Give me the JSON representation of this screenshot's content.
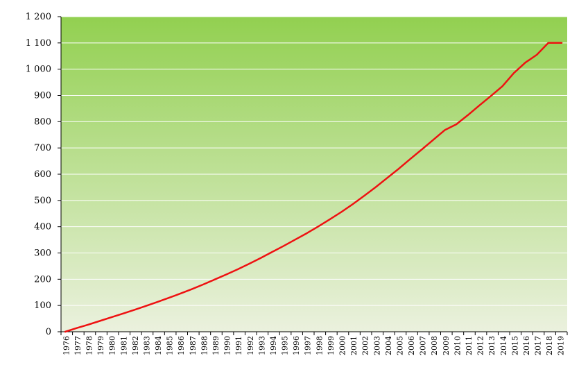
{
  "chart_data": {
    "type": "line",
    "title": "",
    "xlabel": "",
    "ylabel": "",
    "ylim": [
      0,
      1200
    ],
    "yticks": [
      0,
      100,
      200,
      300,
      400,
      500,
      600,
      700,
      800,
      900,
      1000,
      1100,
      1200
    ],
    "ytick_labels": [
      "0",
      "100",
      "200",
      "300",
      "400",
      "500",
      "600",
      "700",
      "800",
      "900",
      "1 000",
      "1 100",
      "1 200"
    ],
    "grid": true,
    "legend": "none",
    "categories": [
      "1976",
      "1977",
      "1978",
      "1979",
      "1980",
      "1981",
      "1982",
      "1983",
      "1984",
      "1985",
      "1986",
      "1987",
      "1988",
      "1989",
      "1990",
      "1991",
      "1992",
      "1993",
      "1994",
      "1995",
      "1996",
      "1997",
      "1998",
      "1999",
      "2000",
      "2001",
      "2002",
      "2003",
      "2004",
      "2005",
      "2006",
      "2007",
      "2008",
      "2009",
      "2010",
      "2011",
      "2012",
      "2013",
      "2014",
      "2015",
      "2016",
      "2017",
      "2018",
      "2019"
    ],
    "series": [
      {
        "color": "#ee1111",
        "values": [
          0,
          14,
          27,
          41,
          55,
          69,
          83,
          98,
          113,
          129,
          145,
          162,
          180,
          199,
          218,
          238,
          259,
          281,
          304,
          327,
          351,
          375,
          401,
          428,
          456,
          486,
          518,
          551,
          586,
          621,
          658,
          694,
          731,
          768,
          790,
          825,
          862,
          898,
          935,
          985,
          1025,
          1055,
          1100,
          1100
        ]
      }
    ],
    "colors": {
      "plot_top": "#92d050",
      "plot_bottom": "#ebf1de",
      "grid": "#ffffff",
      "axis": "#000000"
    }
  }
}
